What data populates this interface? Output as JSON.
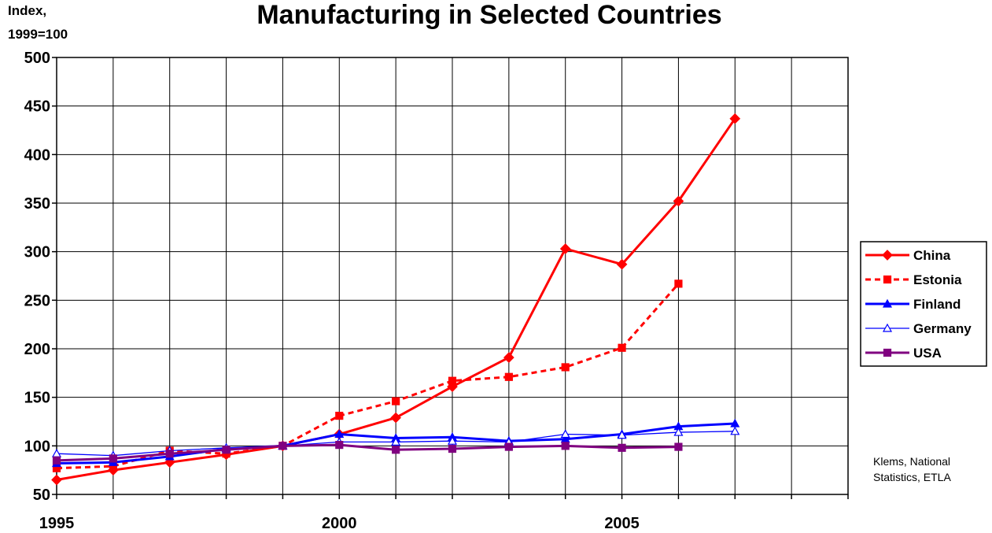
{
  "chart_data": {
    "type": "line",
    "title": "Manufacturing in Selected Countries",
    "ylabel_lines": [
      "Index,",
      "1999=100"
    ],
    "ylim": [
      50,
      500
    ],
    "yticks": [
      50,
      100,
      150,
      200,
      250,
      300,
      350,
      400,
      450,
      500
    ],
    "xlim": [
      1995,
      2009
    ],
    "x_tick_labels": [
      {
        "x": 1995,
        "label": "1995"
      },
      {
        "x": 2000,
        "label": "2000"
      },
      {
        "x": 2005,
        "label": "2005"
      }
    ],
    "grid": true,
    "legend_position": "right",
    "source_note_lines": [
      "Klems, National",
      "Statistics, ETLA"
    ],
    "x": [
      1995,
      1996,
      1997,
      1998,
      1999,
      2000,
      2001,
      2002,
      2003,
      2004,
      2005,
      2006,
      2007
    ],
    "series": [
      {
        "name": "China",
        "color": "#ff0000",
        "dash": false,
        "marker": "diamond",
        "marker_fill": true,
        "values": [
          65,
          75,
          83,
          91,
          100,
          112,
          129,
          161,
          191,
          303,
          287,
          352,
          437
        ]
      },
      {
        "name": "Estonia",
        "color": "#ff0000",
        "dash": true,
        "marker": "square",
        "marker_fill": true,
        "values": [
          77,
          79,
          95,
          92,
          100,
          131,
          146,
          167,
          171,
          181,
          201,
          267,
          null
        ]
      },
      {
        "name": "Finland",
        "color": "#0000ff",
        "dash": false,
        "marker": "triangle",
        "marker_fill": true,
        "values": [
          82,
          83,
          89,
          97,
          100,
          112,
          108,
          109,
          105,
          107,
          112,
          120,
          123
        ]
      },
      {
        "name": "Germany",
        "color": "#0000ff",
        "dash": false,
        "thin": true,
        "marker": "triangle",
        "marker_fill": false,
        "values": [
          92,
          90,
          95,
          98,
          100,
          104,
          104,
          105,
          104,
          112,
          111,
          114,
          115
        ]
      },
      {
        "name": "USA",
        "color": "#800080",
        "dash": false,
        "marker": "square",
        "marker_fill": true,
        "values": [
          85,
          87,
          92,
          96,
          100,
          101,
          96,
          97,
          99,
          100,
          98,
          99,
          null
        ]
      }
    ]
  }
}
